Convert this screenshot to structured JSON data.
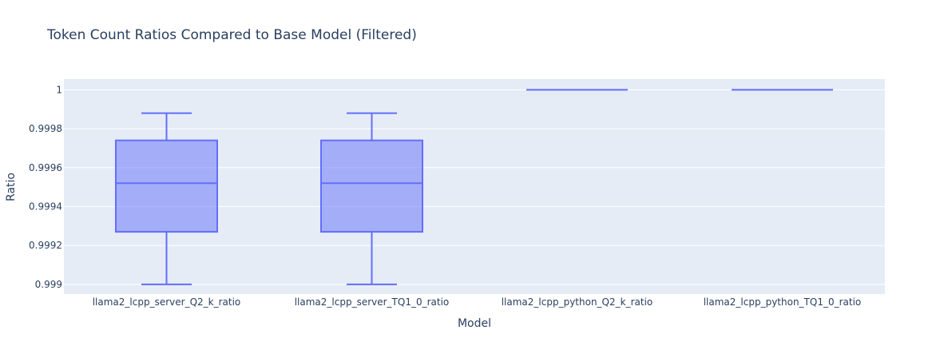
{
  "chart_data": {
    "type": "box",
    "title": "Token Count Ratios Compared to Base Model (Filtered)",
    "xlabel": "Model",
    "ylabel": "Ratio",
    "categories": [
      "llama2_lcpp_server_Q2_k_ratio",
      "llama2_lcpp_server_TQ1_0_ratio",
      "llama2_lcpp_python_Q2_k_ratio",
      "llama2_lcpp_python_TQ1_0_ratio"
    ],
    "boxes": [
      {
        "category": "llama2_lcpp_server_Q2_k_ratio",
        "min": 0.999,
        "q1": 0.99927,
        "median": 0.99952,
        "q3": 0.99974,
        "max": 0.99988
      },
      {
        "category": "llama2_lcpp_server_TQ1_0_ratio",
        "min": 0.999,
        "q1": 0.99927,
        "median": 0.99952,
        "q3": 0.99974,
        "max": 0.99988
      },
      {
        "category": "llama2_lcpp_python_Q2_k_ratio",
        "min": 1.0,
        "q1": 1.0,
        "median": 1.0,
        "q3": 1.0,
        "max": 1.0
      },
      {
        "category": "llama2_lcpp_python_TQ1_0_ratio",
        "min": 1.0,
        "q1": 1.0,
        "median": 1.0,
        "q3": 1.0,
        "max": 1.0
      }
    ],
    "ylim": [
      0.99895,
      1.000055
    ],
    "yticks": [
      0.999,
      0.9992,
      0.9994,
      0.9996,
      0.9998,
      1
    ],
    "ytick_labels": [
      "0.999",
      "0.9992",
      "0.9994",
      "0.9996",
      "0.9998",
      "1"
    ],
    "grid": true,
    "colors": {
      "plot_bg": "#e5ecf6",
      "grid": "#ffffff",
      "box_line": "#636efa",
      "box_fill": "rgba(99,110,250,0.5)",
      "text": "#2a3f5f"
    }
  }
}
